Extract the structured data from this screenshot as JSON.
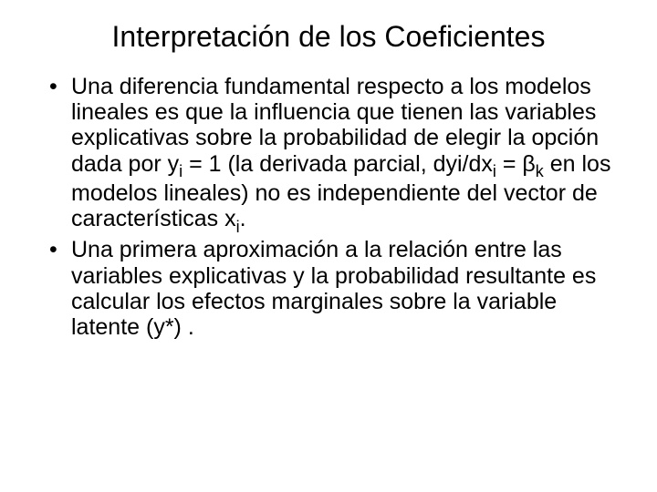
{
  "background_color": "#ffffff",
  "text_color": "#000000",
  "font_family": "Arial",
  "title": {
    "text": "Interpretación de los Coeficientes",
    "fontsize": 32,
    "align": "center"
  },
  "bullets": [
    {
      "html": "Una diferencia fundamental respecto a los modelos lineales es que la influencia que tienen las variables explicativas sobre la probabilidad de elegir la opción dada por y<span class=\"sub\">i</span> = 1 (la derivada parcial, dyi/dx<span class=\"sub\">i</span> = β<span class=\"sub\">k</span> en los modelos lineales) no es independiente del vector de características x<span class=\"sub\">i</span>."
    },
    {
      "html": "Una primera aproximación a la relación entre las variables explicativas y la probabilidad resultante es calcular los efectos marginales sobre la variable latente (y*) ."
    }
  ],
  "bullet_fontsize": 25,
  "bullet_lineheight": 1.13
}
